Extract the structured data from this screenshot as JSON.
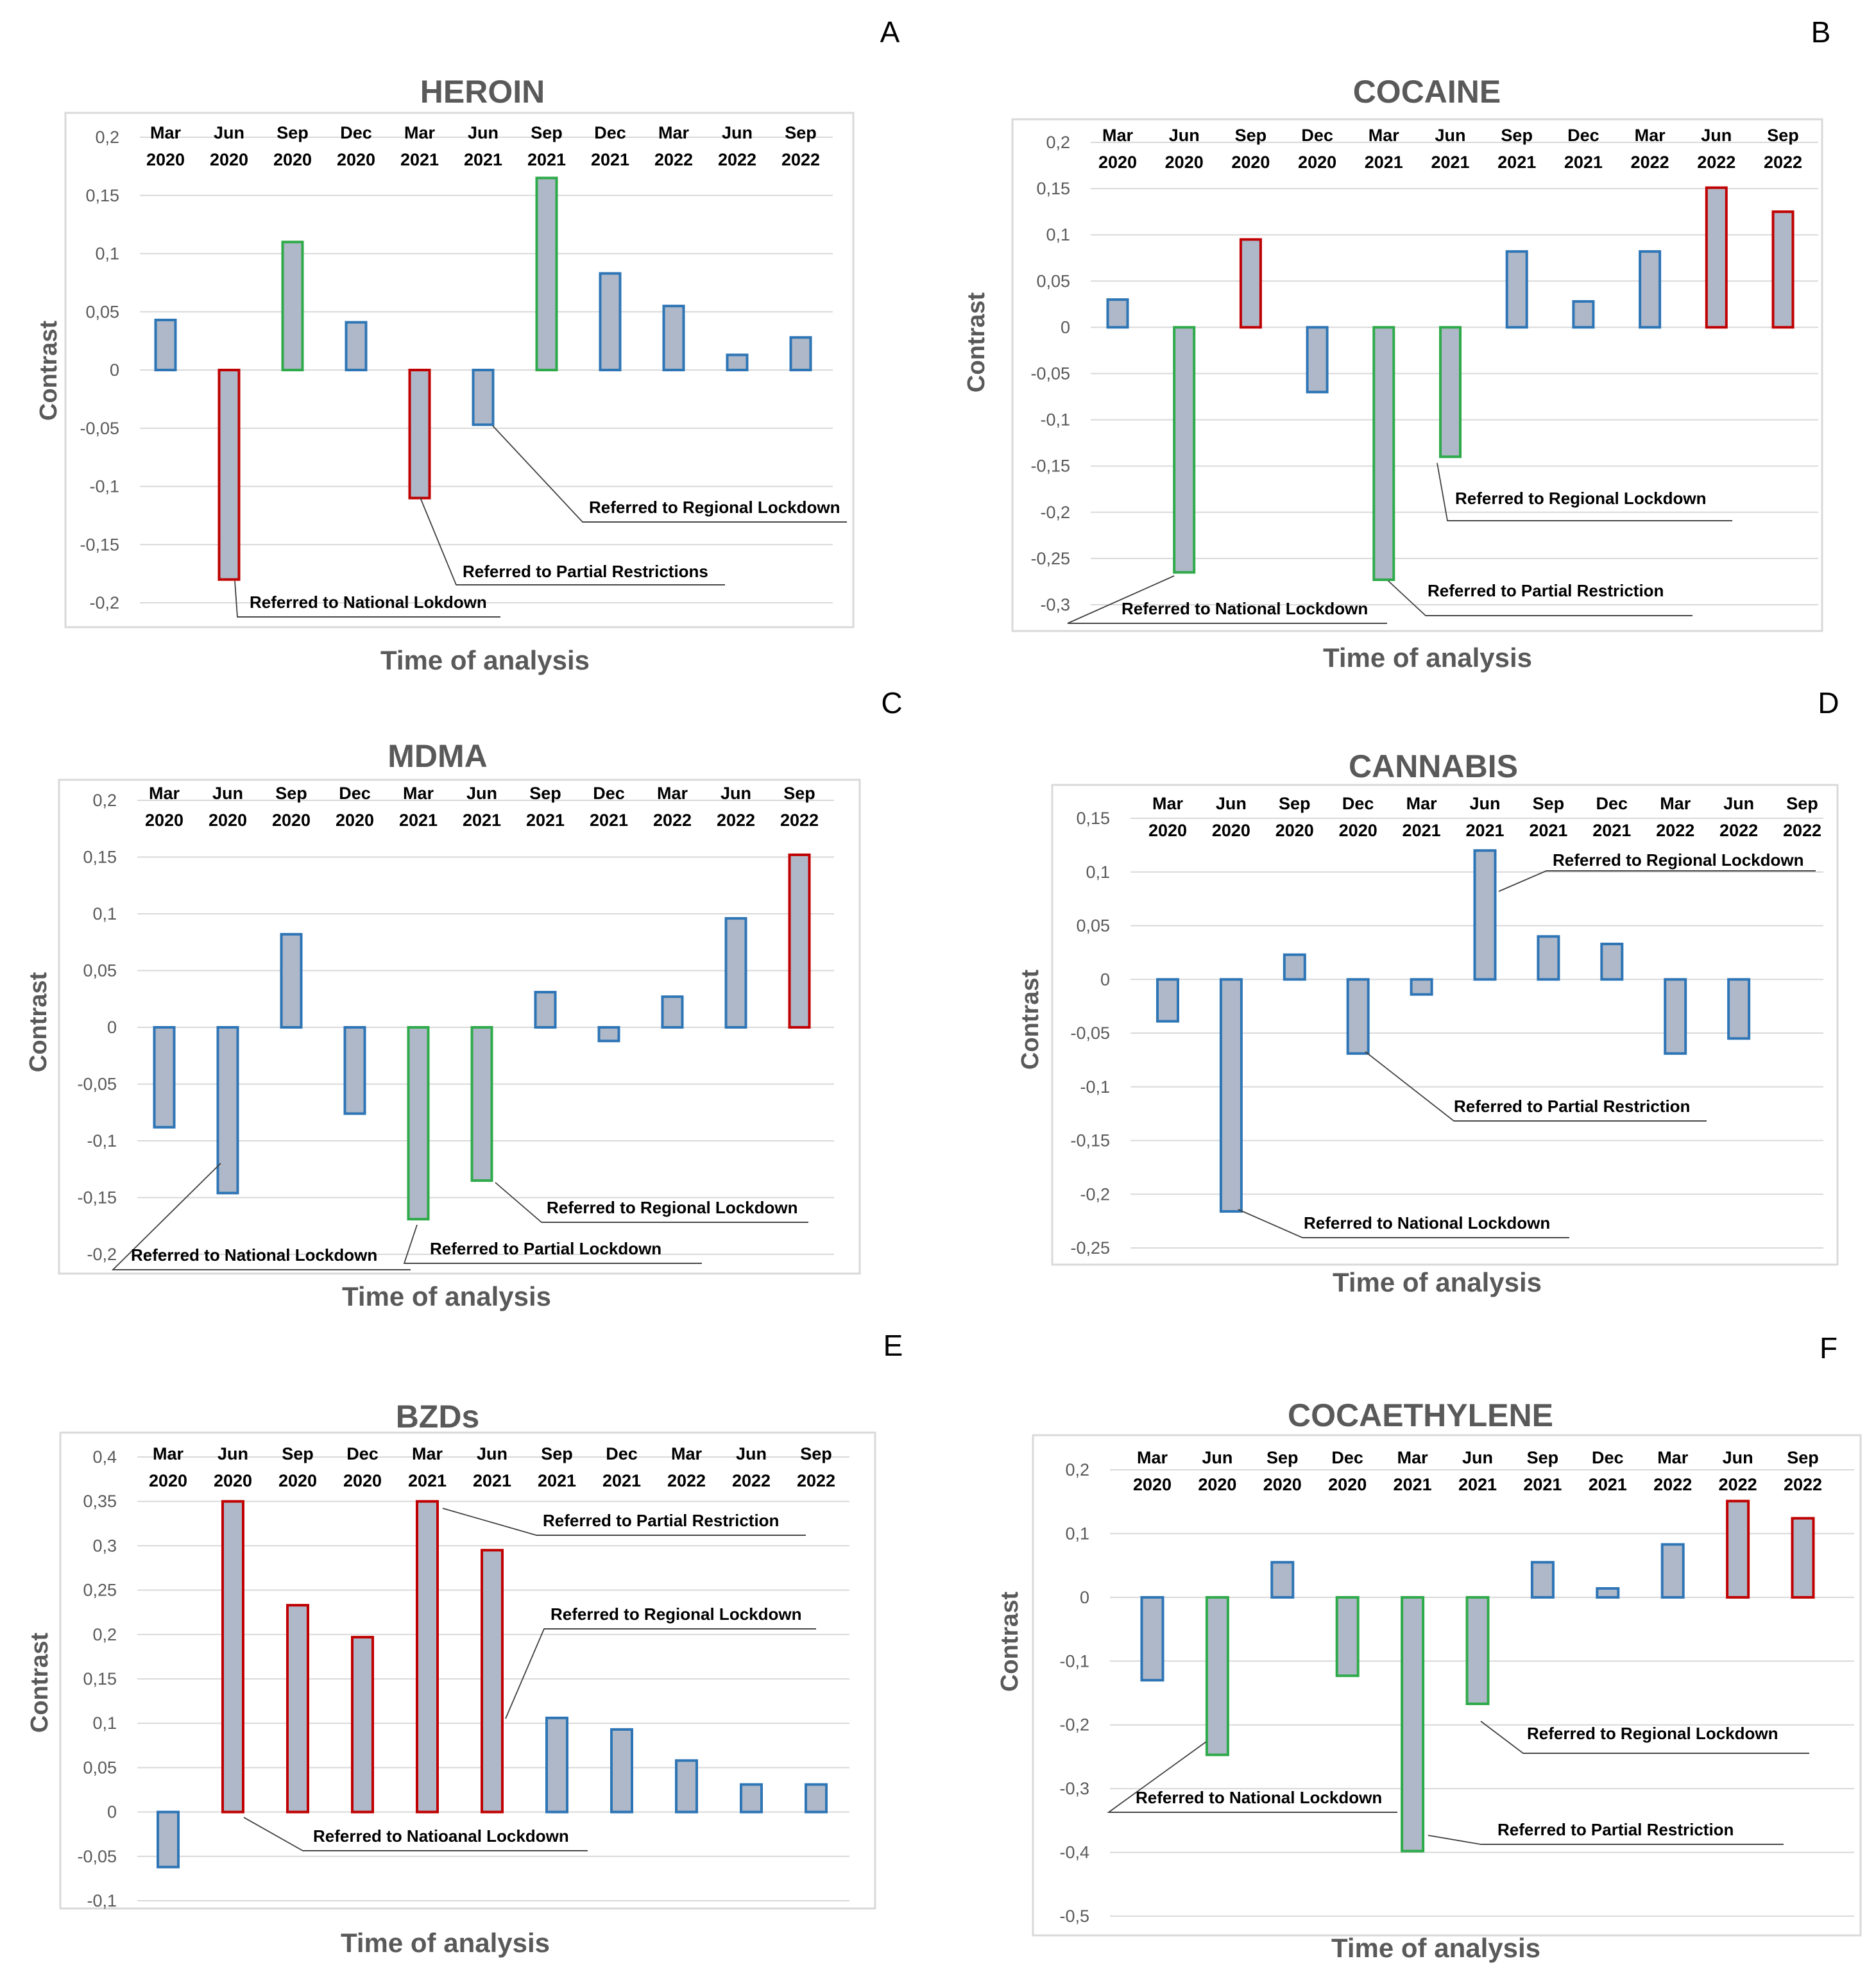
{
  "colors": {
    "bar_fill": "#aeb8c8",
    "blue": "#2e75b6",
    "red": "#c00000",
    "green": "#2faa4a"
  },
  "chart_data": [
    {
      "type": "bar",
      "panel_label": "A",
      "title": "HEROIN",
      "xlabel": "Time of analysis",
      "ylabel": "Contrast",
      "ylim": [
        -0.2,
        0.2
      ],
      "yticks": [
        0.2,
        0.15,
        0.1,
        0.05,
        0,
        -0.05,
        -0.1,
        -0.15,
        -0.2
      ],
      "ytick_labels": [
        "0,2",
        "0,15",
        "0,1",
        "0,05",
        "0",
        "-0,05",
        "-0,1",
        "-0,15",
        "-0,2"
      ],
      "categories": [
        [
          "Mar",
          "2020"
        ],
        [
          "Jun",
          "2020"
        ],
        [
          "Sep",
          "2020"
        ],
        [
          "Dec",
          "2020"
        ],
        [
          "Mar",
          "2021"
        ],
        [
          "Jun",
          "2021"
        ],
        [
          "Sep",
          "2021"
        ],
        [
          "Dec",
          "2021"
        ],
        [
          "Mar",
          "2022"
        ],
        [
          "Jun",
          "2022"
        ],
        [
          "Sep",
          "2022"
        ]
      ],
      "values": [
        0.043,
        -0.18,
        0.11,
        0.041,
        -0.11,
        -0.047,
        0.165,
        0.083,
        0.055,
        0.013,
        0.028
      ],
      "outline": [
        "blue",
        "red",
        "green",
        "blue",
        "red",
        "blue",
        "green",
        "blue",
        "blue",
        "blue",
        "blue"
      ],
      "grid": true,
      "annotations": [
        {
          "text": "Referred to Regional Lockdown",
          "target": 5
        },
        {
          "text": "Referred to Partial Restrictions",
          "target": 4
        },
        {
          "text": "Referred to National Lokdown",
          "target": 1
        }
      ]
    },
    {
      "type": "bar",
      "panel_label": "B",
      "title": "COCAINE",
      "xlabel": "Time of analysis",
      "ylabel": "Contrast",
      "ylim": [
        -0.3,
        0.2
      ],
      "yticks": [
        0.2,
        0.15,
        0.1,
        0.05,
        0,
        -0.05,
        -0.1,
        -0.15,
        -0.2,
        -0.25,
        -0.3
      ],
      "ytick_labels": [
        "0,2",
        "0,15",
        "0,1",
        "0,05",
        "0",
        "-0,05",
        "-0,1",
        "-0,15",
        "-0,2",
        "-0,25",
        "-0,3"
      ],
      "categories": [
        [
          "Mar",
          "2020"
        ],
        [
          "Jun",
          "2020"
        ],
        [
          "Sep",
          "2020"
        ],
        [
          "Dec",
          "2020"
        ],
        [
          "Mar",
          "2021"
        ],
        [
          "Jun",
          "2021"
        ],
        [
          "Sep",
          "2021"
        ],
        [
          "Dec",
          "2021"
        ],
        [
          "Mar",
          "2022"
        ],
        [
          "Jun",
          "2022"
        ],
        [
          "Sep",
          "2022"
        ]
      ],
      "values": [
        0.03,
        -0.265,
        0.095,
        -0.07,
        -0.273,
        -0.14,
        0.082,
        0.028,
        0.082,
        0.151,
        0.125
      ],
      "outline": [
        "blue",
        "green",
        "red",
        "blue",
        "green",
        "green",
        "blue",
        "blue",
        "blue",
        "red",
        "red"
      ],
      "grid": true,
      "annotations": [
        {
          "text": "Referred to Regional Lockdown",
          "target": 5
        },
        {
          "text": "Referred to Partial Restriction",
          "target": 4
        },
        {
          "text": "Referred to National Lockdown",
          "target": 1
        }
      ]
    },
    {
      "type": "bar",
      "panel_label": "C",
      "title": "MDMA",
      "xlabel": "Time of analysis",
      "ylabel": "Contrast",
      "ylim": [
        -0.2,
        0.2
      ],
      "yticks": [
        0.2,
        0.15,
        0.1,
        0.05,
        0,
        -0.05,
        -0.1,
        -0.15,
        -0.2
      ],
      "ytick_labels": [
        "0,2",
        "0,15",
        "0,1",
        "0,05",
        "0",
        "-0,05",
        "-0,1",
        "-0,15",
        "-0,2"
      ],
      "categories": [
        [
          "Mar",
          "2020"
        ],
        [
          "Jun",
          "2020"
        ],
        [
          "Sep",
          "2020"
        ],
        [
          "Dec",
          "2020"
        ],
        [
          "Mar",
          "2021"
        ],
        [
          "Jun",
          "2021"
        ],
        [
          "Sep",
          "2021"
        ],
        [
          "Dec",
          "2021"
        ],
        [
          "Mar",
          "2022"
        ],
        [
          "Jun",
          "2022"
        ],
        [
          "Sep",
          "2022"
        ]
      ],
      "values": [
        -0.088,
        -0.146,
        0.082,
        -0.076,
        -0.169,
        -0.135,
        0.031,
        -0.012,
        0.027,
        0.096,
        0.152
      ],
      "outline": [
        "blue",
        "blue",
        "blue",
        "blue",
        "green",
        "green",
        "blue",
        "blue",
        "blue",
        "blue",
        "red"
      ],
      "grid": true,
      "annotations": [
        {
          "text": "Referred to Regional Lockdown",
          "target": 5
        },
        {
          "text": "Referred to  National Lockdown",
          "target": 1
        },
        {
          "text": "Referred to Partial Lockdown",
          "target": 4
        }
      ]
    },
    {
      "type": "bar",
      "panel_label": "D",
      "title": "CANNABIS",
      "xlabel": "Time of analysis",
      "ylabel": "Contrast",
      "ylim": [
        -0.25,
        0.15
      ],
      "yticks": [
        0.15,
        0.1,
        0.05,
        0,
        -0.05,
        -0.1,
        -0.15,
        -0.2,
        -0.25
      ],
      "ytick_labels": [
        "0,15",
        "0,1",
        "0,05",
        "0",
        "-0,05",
        "-0,1",
        "-0,15",
        "-0,2",
        "-0,25"
      ],
      "categories": [
        [
          "Mar",
          "2020"
        ],
        [
          "Jun",
          "2020"
        ],
        [
          "Sep",
          "2020"
        ],
        [
          "Dec",
          "2020"
        ],
        [
          "Mar",
          "2021"
        ],
        [
          "Jun",
          "2021"
        ],
        [
          "Sep",
          "2021"
        ],
        [
          "Dec",
          "2021"
        ],
        [
          "Mar",
          "2022"
        ],
        [
          "Jun",
          "2022"
        ],
        [
          "Sep",
          "2022"
        ]
      ],
      "values": [
        -0.039,
        -0.216,
        0.023,
        -0.069,
        -0.014,
        0.12,
        0.04,
        0.033,
        -0.069,
        -0.055,
        null
      ],
      "outline": [
        "blue",
        "blue",
        "blue",
        "blue",
        "blue",
        "blue",
        "blue",
        "blue",
        "blue",
        "blue",
        "blue"
      ],
      "grid": true,
      "annotations": [
        {
          "text": "Referred to  Regional Lockdown",
          "target": 5
        },
        {
          "text": "Referred to Partial Restriction",
          "target": 3
        },
        {
          "text": "Referred to National Lockdown",
          "target": 1
        }
      ]
    },
    {
      "type": "bar",
      "panel_label": "E",
      "title": "BZDs",
      "xlabel": "Time of analysis",
      "ylabel": "Contrast",
      "ylim": [
        -0.1,
        0.4
      ],
      "yticks": [
        0.4,
        0.35,
        0.3,
        0.25,
        0.2,
        0.15,
        0.1,
        0.05,
        0,
        -0.05,
        -0.1
      ],
      "ytick_labels": [
        "0,4",
        "0,35",
        "0,3",
        "0,25",
        "0,2",
        "0,15",
        "0,1",
        "0,05",
        "0",
        "-0,05",
        "-0,1"
      ],
      "categories": [
        [
          "Mar",
          "2020"
        ],
        [
          "Jun",
          "2020"
        ],
        [
          "Sep",
          "2020"
        ],
        [
          "Dec",
          "2020"
        ],
        [
          "Mar",
          "2021"
        ],
        [
          "Jun",
          "2021"
        ],
        [
          "Sep",
          "2021"
        ],
        [
          "Dec",
          "2021"
        ],
        [
          "Mar",
          "2022"
        ],
        [
          "Jun",
          "2022"
        ],
        [
          "Sep",
          "2022"
        ]
      ],
      "values": [
        -0.062,
        0.35,
        0.233,
        0.197,
        0.35,
        0.295,
        0.106,
        0.093,
        0.058,
        0.031,
        0.031
      ],
      "outline": [
        "blue",
        "red",
        "red",
        "red",
        "red",
        "red",
        "blue",
        "blue",
        "blue",
        "blue",
        "blue"
      ],
      "grid": true,
      "annotations": [
        {
          "text": "Referred to Partial Restriction",
          "target": 4
        },
        {
          "text": "Referred to Regional Lockdown",
          "target": 5
        },
        {
          "text": "Referred to Natioanal Lockdown",
          "target": 1
        }
      ]
    },
    {
      "type": "bar",
      "panel_label": "F",
      "title": "COCAETHYLENE",
      "xlabel": "Time of analysis",
      "ylabel": "Contrast",
      "ylim": [
        -0.5,
        0.2
      ],
      "yticks": [
        0.2,
        0.1,
        0,
        -0.1,
        -0.2,
        -0.3,
        -0.4,
        -0.5
      ],
      "ytick_labels": [
        "0,2",
        "0,1",
        "0",
        "-0,1",
        "-0,2",
        "-0,3",
        "-0,4",
        "-0,5"
      ],
      "categories": [
        [
          "Mar",
          "2020"
        ],
        [
          "Jun",
          "2020"
        ],
        [
          "Sep",
          "2020"
        ],
        [
          "Dec",
          "2020"
        ],
        [
          "Mar",
          "2021"
        ],
        [
          "Jun",
          "2021"
        ],
        [
          "Sep",
          "2021"
        ],
        [
          "Dec",
          "2021"
        ],
        [
          "Mar",
          "2022"
        ],
        [
          "Jun",
          "2022"
        ],
        [
          "Sep",
          "2022"
        ]
      ],
      "values": [
        -0.13,
        -0.247,
        0.055,
        -0.123,
        -0.398,
        -0.167,
        0.055,
        0.014,
        0.083,
        0.151,
        0.124
      ],
      "outline": [
        "blue",
        "green",
        "blue",
        "green",
        "green",
        "green",
        "blue",
        "blue",
        "blue",
        "red",
        "red"
      ],
      "grid": true,
      "annotations": [
        {
          "text": "Referred to Regional Lockdown",
          "target": 5
        },
        {
          "text": "Referred to National Lockdown",
          "target": 1
        },
        {
          "text": "Referred to Partial Restriction",
          "target": 4
        }
      ]
    }
  ]
}
